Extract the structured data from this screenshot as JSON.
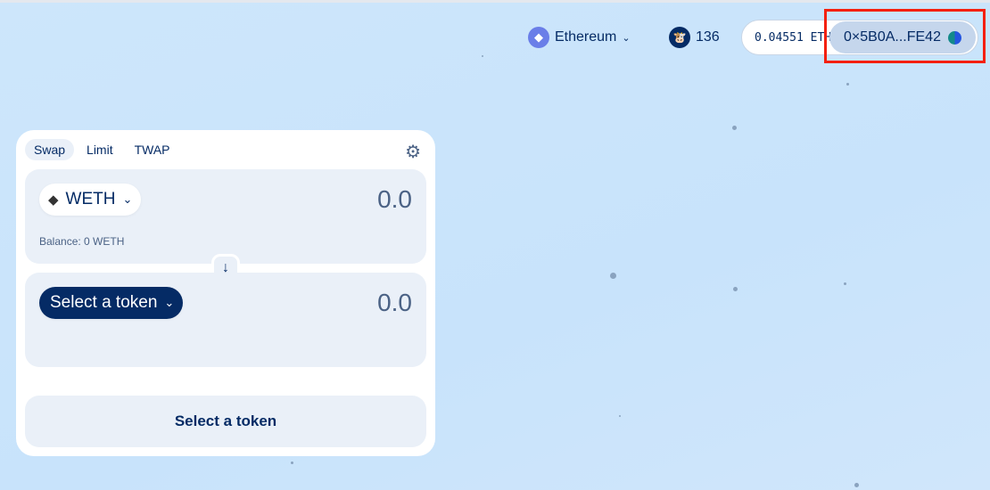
{
  "header": {
    "network": {
      "label": "Ethereum",
      "icon": "ethereum-icon"
    },
    "cow_count": "136",
    "balance": "0.04551 ETH",
    "address": "0×5B0A...FE42"
  },
  "swap": {
    "tabs": [
      {
        "label": "Swap"
      },
      {
        "label": "Limit"
      },
      {
        "label": "TWAP"
      }
    ],
    "sell": {
      "token": "WETH",
      "amount": "0.0",
      "balance": "Balance: 0 WETH"
    },
    "buy": {
      "token": "Select a token",
      "amount": "0.0"
    },
    "cta": "Select a token"
  },
  "colors": {
    "primary": "#052b65",
    "highlight": "#f4200e"
  }
}
